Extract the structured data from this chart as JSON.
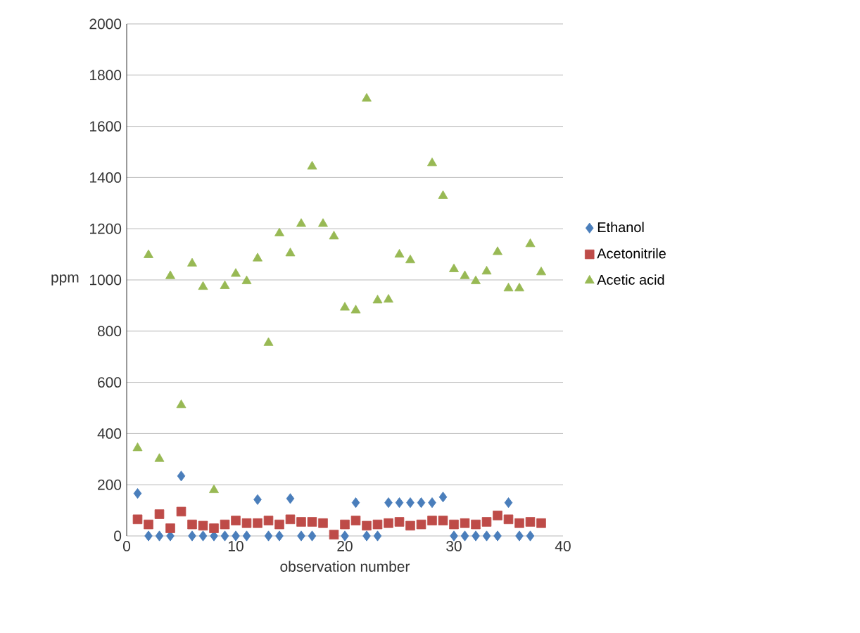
{
  "chart_data": {
    "type": "scatter",
    "xlabel": "observation number",
    "ylabel": "ppm",
    "x": [
      1,
      2,
      3,
      4,
      5,
      6,
      7,
      8,
      9,
      10,
      11,
      12,
      13,
      14,
      15,
      16,
      17,
      18,
      19,
      20,
      21,
      22,
      23,
      24,
      25,
      26,
      27,
      28,
      29,
      30,
      31,
      32,
      33,
      34,
      35,
      36,
      37,
      38
    ],
    "series": [
      {
        "name": "Ethanol",
        "color": "#4a7ebb",
        "marker": "diamond",
        "values": [
          166,
          0,
          0,
          0,
          234,
          0,
          0,
          0,
          0,
          0,
          0,
          142,
          0,
          0,
          146,
          0,
          0,
          null,
          null,
          0,
          130,
          0,
          0,
          130,
          130,
          130,
          130,
          130,
          152,
          0,
          0,
          0,
          0,
          0,
          130,
          0,
          0,
          null
        ]
      },
      {
        "name": "Acetonitrile",
        "color": "#be4b48",
        "marker": "square",
        "values": [
          65,
          45,
          85,
          30,
          95,
          45,
          40,
          30,
          45,
          60,
          50,
          50,
          60,
          45,
          65,
          55,
          55,
          50,
          5,
          45,
          60,
          40,
          45,
          50,
          55,
          40,
          45,
          60,
          60,
          45,
          50,
          45,
          55,
          80,
          65,
          50,
          55,
          50
        ]
      },
      {
        "name": "Acetic acid",
        "color": "#98b954",
        "marker": "triangle",
        "values": [
          343,
          1097,
          301,
          1015,
          511,
          1064,
          973,
          179,
          976,
          1024,
          995,
          1084,
          754,
          1182,
          1104,
          1219,
          1443,
          1219,
          1170,
          892,
          881,
          1708,
          920,
          923,
          1099,
          1077,
          null,
          1456,
          1328,
          1042,
          1015,
          995,
          1033,
          1109,
          967,
          967,
          1140,
          1030
        ]
      }
    ],
    "xlim": [
      0,
      40
    ],
    "xticks": [
      0,
      10,
      20,
      30,
      40
    ],
    "ylim": [
      0,
      2000
    ],
    "yticks": [
      0,
      200,
      400,
      600,
      800,
      1000,
      1200,
      1400,
      1600,
      1800,
      2000
    ],
    "grid": "y",
    "legend": "right"
  }
}
